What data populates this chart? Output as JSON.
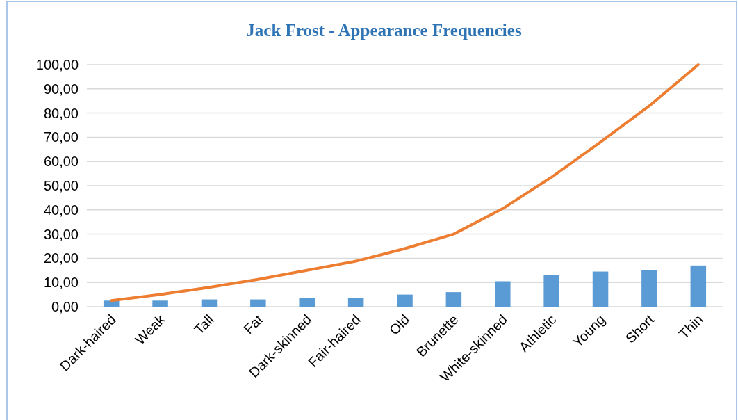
{
  "chart_data": {
    "type": "bar",
    "title": "Jack Frost - Appearance Frequencies",
    "categories": [
      "Dark-haired",
      "Weak",
      "Tall",
      "Fat",
      "Dark-skinned",
      "Fair-haired",
      "Old",
      "Brunette",
      "White-skinned",
      "Athletic",
      "Young",
      "Short",
      "Thin"
    ],
    "series": [
      {
        "color": "#5b9bd5",
        "values": [
          2.5,
          2.5,
          3,
          3,
          3.7,
          3.7,
          5,
          6,
          10.5,
          13,
          14.5,
          15,
          17
        ]
      },
      {
        "type": "line",
        "color": "#ed7d31",
        "values": [
          2.5,
          5,
          8,
          11.3,
          15,
          18.8,
          24,
          30,
          40.5,
          53.5,
          68,
          83,
          100
        ]
      }
    ],
    "ylim": [
      0,
      100
    ],
    "yticks": [
      {
        "value": 0,
        "label": "0,00"
      },
      {
        "value": 10,
        "label": "10,00"
      },
      {
        "value": 20,
        "label": "20,00"
      },
      {
        "value": 30,
        "label": "30,00"
      },
      {
        "value": 40,
        "label": "40,00"
      },
      {
        "value": 50,
        "label": "50,00"
      },
      {
        "value": 60,
        "label": "60,00"
      },
      {
        "value": 70,
        "label": "70,00"
      },
      {
        "value": 80,
        "label": "80,00"
      },
      {
        "value": 90,
        "label": "90,00"
      },
      {
        "value": 100,
        "label": "100,00"
      }
    ],
    "grid": "y",
    "marker": "none",
    "line_style": "solid"
  }
}
